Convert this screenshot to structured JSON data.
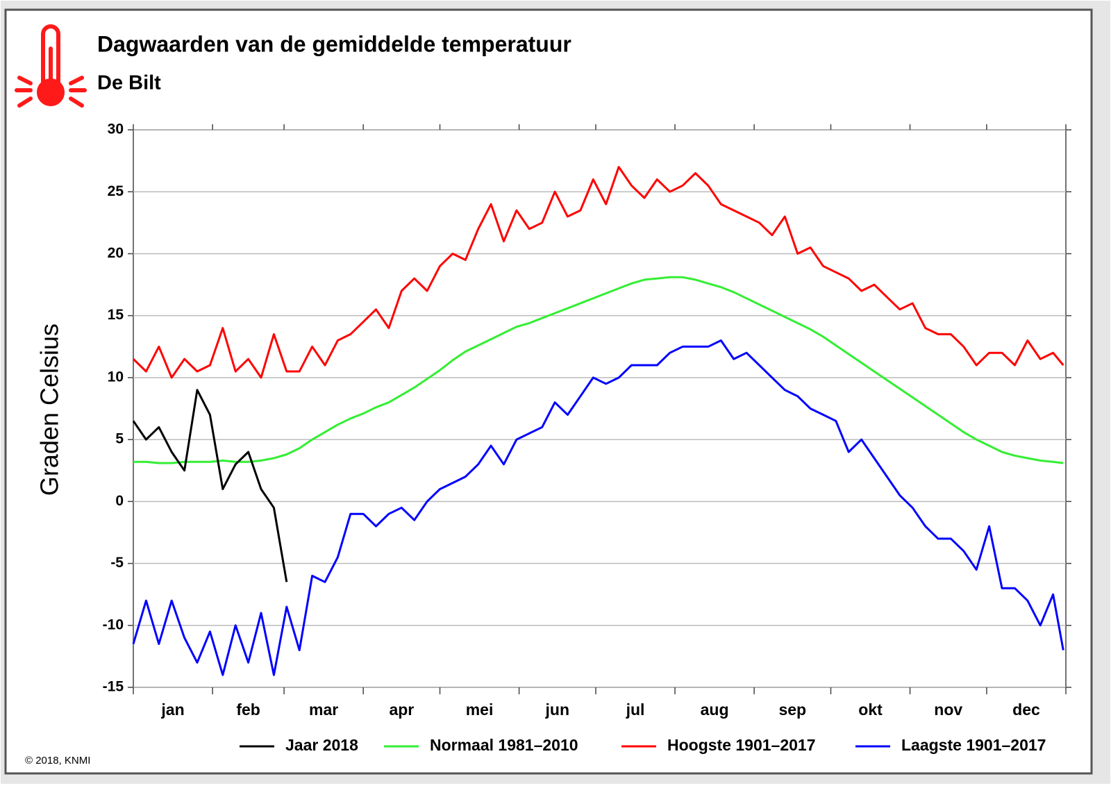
{
  "chart_data": {
    "type": "line",
    "title": "Dagwaarden van de gemiddelde temperatuur",
    "subtitle": "De Bilt",
    "y_label": "Graden Celsius",
    "credit": "© 2018, KNMI",
    "categories": [
      "jan",
      "feb",
      "mar",
      "apr",
      "mei",
      "jun",
      "jul",
      "aug",
      "sep",
      "okt",
      "nov",
      "dec"
    ],
    "xlim": [
      1,
      366
    ],
    "xticks": [
      1,
      32,
      60,
      91,
      121,
      152,
      182,
      213,
      244,
      274,
      305,
      335,
      366
    ],
    "ylim": [
      -15,
      30
    ],
    "yticks": [
      -15,
      -10,
      -5,
      0,
      5,
      10,
      15,
      20,
      25,
      30
    ],
    "grid": true,
    "legend": "bottom",
    "x": [
      1,
      6,
      11,
      16,
      21,
      26,
      31,
      36,
      41,
      46,
      51,
      56,
      61,
      66,
      71,
      76,
      81,
      86,
      91,
      96,
      101,
      106,
      111,
      116,
      121,
      126,
      131,
      136,
      141,
      146,
      151,
      156,
      161,
      166,
      171,
      176,
      181,
      186,
      191,
      196,
      201,
      206,
      211,
      216,
      221,
      226,
      231,
      236,
      241,
      246,
      251,
      256,
      261,
      266,
      271,
      276,
      281,
      286,
      291,
      296,
      301,
      306,
      311,
      316,
      321,
      326,
      331,
      336,
      341,
      346,
      351,
      356,
      361,
      365
    ],
    "series": [
      {
        "name": "Jaar 2018",
        "color": "#000000",
        "values": [
          6.5,
          5,
          6,
          4,
          2.5,
          9,
          7,
          1,
          3,
          4,
          1,
          -0.5,
          -6.5,
          null,
          null,
          null,
          null,
          null,
          null,
          null,
          null,
          null,
          null,
          null,
          null,
          null,
          null,
          null,
          null,
          null,
          null,
          null,
          null,
          null,
          null,
          null,
          null,
          null,
          null,
          null,
          null,
          null,
          null,
          null,
          null,
          null,
          null,
          null,
          null,
          null,
          null,
          null,
          null,
          null,
          null,
          null,
          null,
          null,
          null,
          null,
          null,
          null,
          null,
          null,
          null,
          null,
          null,
          null,
          null,
          null,
          null,
          null,
          null,
          null
        ]
      },
      {
        "name": "Normaal 1981–2010",
        "color": "#33ee33",
        "values": [
          3.2,
          3.2,
          3.1,
          3.1,
          3.2,
          3.2,
          3.2,
          3.3,
          3.2,
          3.2,
          3.3,
          3.5,
          3.8,
          4.3,
          5.0,
          5.6,
          6.2,
          6.7,
          7.1,
          7.6,
          8.0,
          8.6,
          9.2,
          9.9,
          10.6,
          11.4,
          12.1,
          12.6,
          13.1,
          13.6,
          14.1,
          14.4,
          14.8,
          15.2,
          15.6,
          16.0,
          16.4,
          16.8,
          17.2,
          17.6,
          17.9,
          18.0,
          18.1,
          18.1,
          17.9,
          17.6,
          17.3,
          16.9,
          16.4,
          15.9,
          15.4,
          14.9,
          14.4,
          13.9,
          13.3,
          12.6,
          11.9,
          11.2,
          10.5,
          9.8,
          9.1,
          8.4,
          7.7,
          7.0,
          6.3,
          5.6,
          5.0,
          4.5,
          4.0,
          3.7,
          3.5,
          3.3,
          3.2,
          3.1
        ]
      },
      {
        "name": "Hoogste 1901–2017",
        "color": "#ff0000",
        "values": [
          11.5,
          10.5,
          12.5,
          10,
          11.5,
          10.5,
          11,
          14,
          10.5,
          11.5,
          10,
          13.5,
          10.5,
          10.5,
          12.5,
          11,
          13,
          13.5,
          14.5,
          15.5,
          14,
          17,
          18,
          17,
          19,
          20,
          19.5,
          22,
          24,
          21,
          23.5,
          22,
          22.5,
          25,
          23,
          23.5,
          26,
          24,
          27,
          25.5,
          24.5,
          26,
          25,
          25.5,
          26.5,
          25.5,
          24,
          23.5,
          23,
          22.5,
          21.5,
          23,
          20,
          20.5,
          19,
          18.5,
          18,
          17,
          17.5,
          16.5,
          15.5,
          16,
          14,
          13.5,
          13.5,
          12.5,
          11,
          12,
          12,
          11,
          13,
          11.5,
          12,
          11
        ]
      },
      {
        "name": "Laagste 1901–2017",
        "color": "#0000ff",
        "values": [
          -11.5,
          -8,
          -11.5,
          -8,
          -11,
          -13,
          -10.5,
          -14,
          -10,
          -13,
          -9,
          -14,
          -8.5,
          -12,
          -6,
          -6.5,
          -4.5,
          -1,
          -1,
          -2,
          -1,
          -0.5,
          -1.5,
          0,
          1,
          1.5,
          2,
          3,
          4.5,
          3,
          5,
          5.5,
          6,
          8,
          7,
          8.5,
          10,
          9.5,
          10,
          11,
          11,
          11,
          12,
          12.5,
          12.5,
          12.5,
          13,
          11.5,
          12,
          11,
          10,
          9,
          8.5,
          7.5,
          7,
          6.5,
          4,
          5,
          3.5,
          2,
          0.5,
          -0.5,
          -2,
          -3,
          -3,
          -4,
          -5.5,
          -2,
          -7,
          -7,
          -8,
          -10,
          -7.5,
          -12
        ]
      }
    ]
  }
}
